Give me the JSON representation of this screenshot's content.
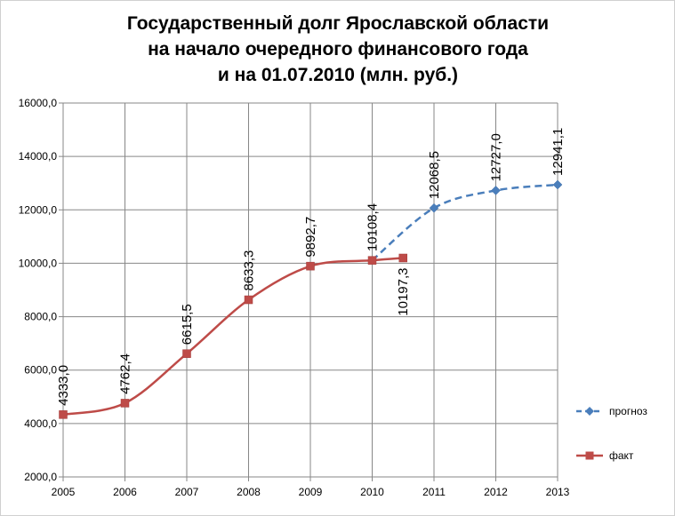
{
  "title": {
    "line1": "Государственный долг Ярославской области",
    "line2": "на начало очередного финансового года",
    "line3": "и на 01.07.2010 (млн. руб.)"
  },
  "chart_data": {
    "type": "line",
    "title": "Государственный долг Ярославской области на начало очередного финансового года и на 01.07.2010 (млн. руб.)",
    "categories": [
      "2005",
      "2006",
      "2007",
      "2008",
      "2009",
      "2010",
      "2011",
      "2012",
      "2013"
    ],
    "yticks": [
      "2000,0",
      "4000,0",
      "6000,0",
      "8000,0",
      "10000,0",
      "12000,0",
      "14000,0",
      "16000,0"
    ],
    "ylim": [
      2000,
      16000
    ],
    "grid": true,
    "legend_position": "right",
    "series": [
      {
        "name": "прогноз",
        "color": "#4a7ebb",
        "style": "dashed",
        "marker": "diamond",
        "points": [
          {
            "x": 2010,
            "y": 10108.4,
            "label": ""
          },
          {
            "x": 2011,
            "y": 12068.5,
            "label": "12068,5"
          },
          {
            "x": 2012,
            "y": 12727.0,
            "label": "12727,0"
          },
          {
            "x": 2013,
            "y": 12941.1,
            "label": "12941,1"
          }
        ]
      },
      {
        "name": "факт",
        "color": "#be4b48",
        "style": "solid",
        "marker": "square",
        "points": [
          {
            "x": 2005,
            "y": 4333.0,
            "label": "4333,0"
          },
          {
            "x": 2006,
            "y": 4762.4,
            "label": "4762,4"
          },
          {
            "x": 2007,
            "y": 6615.5,
            "label": "6615,5"
          },
          {
            "x": 2008,
            "y": 8633.3,
            "label": "8633,3"
          },
          {
            "x": 2009,
            "y": 9892.7,
            "label": "9892,7"
          },
          {
            "x": 2010,
            "y": 10108.4,
            "label": "10108,4"
          },
          {
            "x": 2010.5,
            "y": 10197.3,
            "label": "10197,3"
          }
        ]
      }
    ]
  }
}
